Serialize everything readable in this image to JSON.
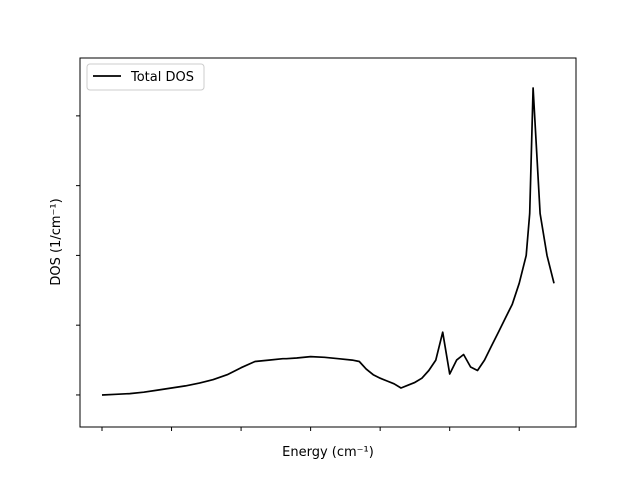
{
  "chart_data": {
    "type": "line",
    "xlabel": "Energy (cm⁻¹)",
    "ylabel": "DOS (1/cm⁻¹)",
    "xlim": [
      0,
      65
    ],
    "ylim": [
      -0.23,
      4.6
    ],
    "x_ticks": [
      0,
      10,
      20,
      30,
      40,
      50,
      60
    ],
    "y_ticks": [
      0,
      1,
      2,
      3,
      4
    ],
    "tick_labels_visible": false,
    "grid": false,
    "legend_position": "top-left",
    "series": [
      {
        "name": "Total DOS",
        "color": "#000000",
        "x": [
          0,
          2,
          4,
          6,
          8,
          10,
          12,
          14,
          16,
          18,
          20,
          22,
          24,
          26,
          26.5,
          28,
          30,
          32,
          34,
          36,
          37,
          38,
          39,
          40,
          41,
          42,
          43,
          44,
          45,
          46,
          47,
          48,
          49,
          50,
          51,
          52,
          53,
          54,
          55,
          56,
          57,
          58,
          59,
          60,
          61,
          61.5,
          62,
          62.5,
          63,
          64,
          65
        ],
        "y": [
          0,
          0.01,
          0.02,
          0.04,
          0.07,
          0.1,
          0.13,
          0.17,
          0.22,
          0.29,
          0.39,
          0.48,
          0.5,
          0.52,
          0.52,
          0.53,
          0.55,
          0.54,
          0.52,
          0.5,
          0.48,
          0.37,
          0.29,
          0.24,
          0.2,
          0.16,
          0.1,
          0.14,
          0.18,
          0.24,
          0.35,
          0.5,
          0.9,
          0.3,
          0.5,
          0.58,
          0.4,
          0.35,
          0.5,
          0.7,
          0.9,
          1.1,
          1.3,
          1.6,
          2.0,
          2.6,
          4.4,
          3.5,
          2.6,
          2.0,
          1.6
        ]
      }
    ]
  }
}
